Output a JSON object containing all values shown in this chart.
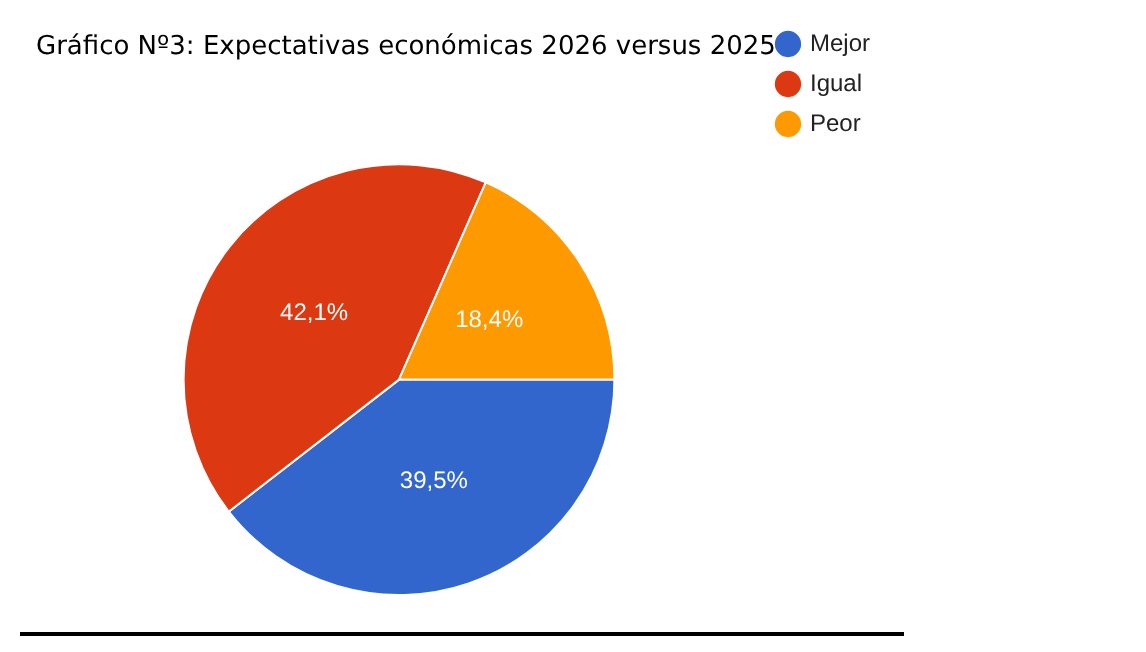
{
  "chart_data": {
    "type": "pie",
    "title": "Gráfico Nº3: Expectativas económicas 2026 versus 2025",
    "categories": [
      "Mejor",
      "Igual",
      "Peor"
    ],
    "values": [
      39.5,
      42.1,
      18.4
    ],
    "colors": [
      "#3366cc",
      "#dc3912",
      "#ff9900"
    ],
    "value_labels": [
      "39,5%",
      "42,1%",
      "18,4%"
    ],
    "legend": "right"
  }
}
